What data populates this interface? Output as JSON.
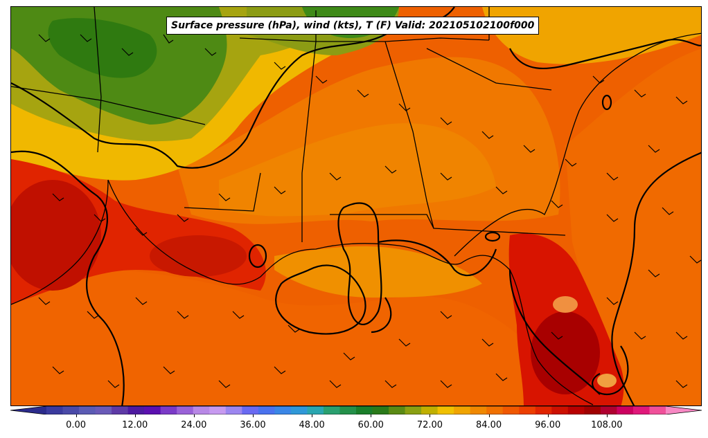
{
  "title": "Surface pressure (hPa), wind (kts), T (F) Valid: 202105102100f000",
  "colorbar": {
    "min": -6,
    "max": 120,
    "tick_labels": [
      "0.00",
      "12.00",
      "24.00",
      "36.00",
      "48.00",
      "60.00",
      "72.00",
      "84.00",
      "96.00",
      "108.00"
    ],
    "tick_values": [
      0,
      12,
      24,
      36,
      48,
      60,
      72,
      84,
      96,
      108
    ],
    "colors": [
      "#2b2b8c",
      "#3a3a9e",
      "#4a4aa8",
      "#5b5bb4",
      "#6a5ab8",
      "#5e3aa6",
      "#4e1aa0",
      "#5b10b0",
      "#7b3ac8",
      "#9a62d8",
      "#b888e6",
      "#c79af0",
      "#9c86f0",
      "#6a6af2",
      "#4a72ee",
      "#3a86e6",
      "#2f98d8",
      "#2aa6b0",
      "#2aa070",
      "#24904a",
      "#1a7e2a",
      "#2a7a1a",
      "#5a8a14",
      "#8aa012",
      "#c0b000",
      "#f0c000",
      "#f0a400",
      "#f08800",
      "#f07000",
      "#f05800",
      "#ec3e00",
      "#e02400",
      "#cc1000",
      "#b80000",
      "#a00000",
      "#b00030",
      "#cc0060",
      "#e0187a",
      "#f0509a",
      "#f888c4"
    ],
    "extend": "both"
  },
  "map": {
    "region": "Gulf Coast / Southeast US",
    "fields": [
      "temperature (F) filled contours",
      "surface pressure isobars",
      "wind barbs (kts)"
    ]
  }
}
